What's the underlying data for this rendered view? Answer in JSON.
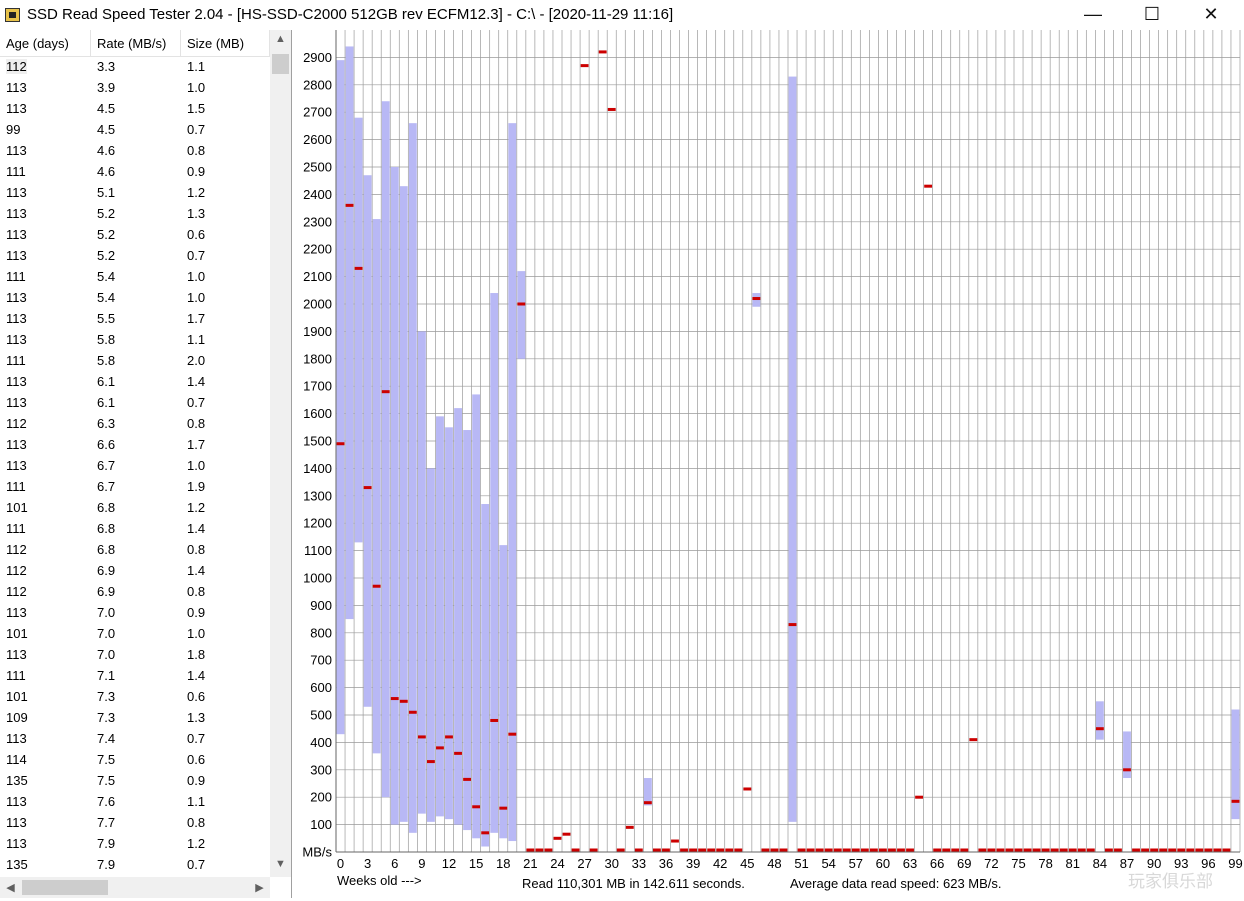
{
  "window": {
    "title": "SSD Read Speed Tester 2.04 - [HS-SSD-C2000 512GB rev ECFM12.3] - C:\\ - [2020-11-29 11:16]",
    "minimize_glyph": "—",
    "maximize_glyph": "☐",
    "close_glyph": "✕"
  },
  "table": {
    "columns": [
      "Age (days)",
      "Rate (MB/s)",
      "Size (MB)"
    ],
    "rows": [
      [
        "112",
        "3.3",
        "1.1"
      ],
      [
        "113",
        "3.9",
        "1.0"
      ],
      [
        "113",
        "4.5",
        "1.5"
      ],
      [
        "99",
        "4.5",
        "0.7"
      ],
      [
        "113",
        "4.6",
        "0.8"
      ],
      [
        "111",
        "4.6",
        "0.9"
      ],
      [
        "113",
        "5.1",
        "1.2"
      ],
      [
        "113",
        "5.2",
        "1.3"
      ],
      [
        "113",
        "5.2",
        "0.6"
      ],
      [
        "113",
        "5.2",
        "0.7"
      ],
      [
        "111",
        "5.4",
        "1.0"
      ],
      [
        "113",
        "5.4",
        "1.0"
      ],
      [
        "113",
        "5.5",
        "1.7"
      ],
      [
        "113",
        "5.8",
        "1.1"
      ],
      [
        "111",
        "5.8",
        "2.0"
      ],
      [
        "113",
        "6.1",
        "1.4"
      ],
      [
        "113",
        "6.1",
        "0.7"
      ],
      [
        "112",
        "6.3",
        "0.8"
      ],
      [
        "113",
        "6.6",
        "1.7"
      ],
      [
        "113",
        "6.7",
        "1.0"
      ],
      [
        "111",
        "6.7",
        "1.9"
      ],
      [
        "101",
        "6.8",
        "1.2"
      ],
      [
        "111",
        "6.8",
        "1.4"
      ],
      [
        "112",
        "6.8",
        "0.8"
      ],
      [
        "112",
        "6.9",
        "1.4"
      ],
      [
        "112",
        "6.9",
        "0.8"
      ],
      [
        "113",
        "7.0",
        "0.9"
      ],
      [
        "101",
        "7.0",
        "1.0"
      ],
      [
        "113",
        "7.0",
        "1.8"
      ],
      [
        "111",
        "7.1",
        "1.4"
      ],
      [
        "101",
        "7.3",
        "0.6"
      ],
      [
        "109",
        "7.3",
        "1.3"
      ],
      [
        "113",
        "7.4",
        "0.7"
      ],
      [
        "114",
        "7.5",
        "0.6"
      ],
      [
        "135",
        "7.5",
        "0.9"
      ],
      [
        "113",
        "7.6",
        "1.1"
      ],
      [
        "113",
        "7.7",
        "0.8"
      ],
      [
        "113",
        "7.9",
        "1.2"
      ],
      [
        "135",
        "7.9",
        "0.7"
      ]
    ]
  },
  "chart_data": {
    "type": "bar",
    "title": "",
    "xlabel": "Weeks old --->",
    "ylabel": "MB/s",
    "ylim": [
      0,
      3000
    ],
    "y_ticks": [
      100,
      200,
      300,
      400,
      500,
      600,
      700,
      800,
      900,
      1000,
      1100,
      1200,
      1300,
      1400,
      1500,
      1600,
      1700,
      1800,
      1900,
      2000,
      2100,
      2200,
      2300,
      2400,
      2500,
      2600,
      2700,
      2800,
      2900
    ],
    "x_ticks": [
      0,
      3,
      6,
      9,
      12,
      15,
      18,
      21,
      24,
      27,
      30,
      33,
      36,
      39,
      42,
      45,
      48,
      51,
      54,
      57,
      60,
      63,
      66,
      69,
      72,
      75,
      78,
      81,
      84,
      87,
      90,
      93,
      96,
      99
    ],
    "grid": true,
    "colors": {
      "range_bar": "#b8b8f5",
      "average_mark": "#cc0000",
      "grid": "#9a9a9a"
    },
    "series": [
      {
        "name": "",
        "description_hidden": true,
        "points": [
          {
            "week": 0,
            "min": 430,
            "max": 2890,
            "avg": 1490
          },
          {
            "week": 1,
            "min": 850,
            "max": 2940,
            "avg": 2360
          },
          {
            "week": 2,
            "min": 1130,
            "max": 2680,
            "avg": 2130
          },
          {
            "week": 3,
            "min": 530,
            "max": 2470,
            "avg": 1330
          },
          {
            "week": 4,
            "min": 360,
            "max": 2310,
            "avg": 970
          },
          {
            "week": 5,
            "min": 200,
            "max": 2740,
            "avg": 1680
          },
          {
            "week": 6,
            "min": 100,
            "max": 2500,
            "avg": 560
          },
          {
            "week": 7,
            "min": 110,
            "max": 2430,
            "avg": 550
          },
          {
            "week": 8,
            "min": 70,
            "max": 2660,
            "avg": 510
          },
          {
            "week": 9,
            "min": 140,
            "max": 1900,
            "avg": 420
          },
          {
            "week": 10,
            "min": 110,
            "max": 1400,
            "avg": 330
          },
          {
            "week": 11,
            "min": 130,
            "max": 1590,
            "avg": 380
          },
          {
            "week": 12,
            "min": 120,
            "max": 1550,
            "avg": 420
          },
          {
            "week": 13,
            "min": 100,
            "max": 1620,
            "avg": 360
          },
          {
            "week": 14,
            "min": 80,
            "max": 1540,
            "avg": 265
          },
          {
            "week": 15,
            "min": 50,
            "max": 1670,
            "avg": 165
          },
          {
            "week": 16,
            "min": 20,
            "max": 1270,
            "avg": 70
          },
          {
            "week": 17,
            "min": 70,
            "max": 2040,
            "avg": 480
          },
          {
            "week": 18,
            "min": 50,
            "max": 1120,
            "avg": 160
          },
          {
            "week": 19,
            "min": 40,
            "max": 2660,
            "avg": 430
          },
          {
            "week": 20,
            "min": 1800,
            "max": 2120,
            "avg": 2000
          },
          {
            "week": 21,
            "min": 0,
            "max": 0,
            "avg": 5
          },
          {
            "week": 22,
            "min": 0,
            "max": 0,
            "avg": 5
          },
          {
            "week": 23,
            "min": 0,
            "max": 0,
            "avg": 5
          },
          {
            "week": 24,
            "min": 0,
            "max": 0,
            "avg": 50
          },
          {
            "week": 25,
            "min": 0,
            "max": 0,
            "avg": 65
          },
          {
            "week": 26,
            "min": 0,
            "max": 0,
            "avg": 5
          },
          {
            "week": 27,
            "min": 0,
            "max": 0,
            "avg": 2870
          },
          {
            "week": 28,
            "min": 0,
            "max": 0,
            "avg": 5
          },
          {
            "week": 29,
            "min": 0,
            "max": 0,
            "avg": 2920
          },
          {
            "week": 30,
            "min": 0,
            "max": 0,
            "avg": 2710
          },
          {
            "week": 31,
            "min": 0,
            "max": 0,
            "avg": 5
          },
          {
            "week": 32,
            "min": 0,
            "max": 0,
            "avg": 90
          },
          {
            "week": 33,
            "min": 0,
            "max": 0,
            "avg": 5
          },
          {
            "week": 34,
            "min": 170,
            "max": 270,
            "avg": 180
          },
          {
            "week": 35,
            "min": 0,
            "max": 0,
            "avg": 5
          },
          {
            "week": 36,
            "min": 0,
            "max": 0,
            "avg": 5
          },
          {
            "week": 37,
            "min": 0,
            "max": 0,
            "avg": 40
          },
          {
            "week": 38,
            "min": 0,
            "max": 0,
            "avg": 5
          },
          {
            "week": 39,
            "min": 0,
            "max": 0,
            "avg": 5
          },
          {
            "week": 40,
            "min": 0,
            "max": 0,
            "avg": 5
          },
          {
            "week": 41,
            "min": 0,
            "max": 0,
            "avg": 5
          },
          {
            "week": 42,
            "min": 0,
            "max": 0,
            "avg": 5
          },
          {
            "week": 43,
            "min": 0,
            "max": 0,
            "avg": 5
          },
          {
            "week": 44,
            "min": 0,
            "max": 0,
            "avg": 5
          },
          {
            "week": 45,
            "min": 0,
            "max": 0,
            "avg": 230
          },
          {
            "week": 46,
            "min": 1990,
            "max": 2040,
            "avg": 2020
          },
          {
            "week": 47,
            "min": 0,
            "max": 0,
            "avg": 5
          },
          {
            "week": 48,
            "min": 0,
            "max": 0,
            "avg": 5
          },
          {
            "week": 49,
            "min": 0,
            "max": 0,
            "avg": 5
          },
          {
            "week": 50,
            "min": 110,
            "max": 2830,
            "avg": 830
          },
          {
            "week": 51,
            "min": 0,
            "max": 0,
            "avg": 5
          },
          {
            "week": 52,
            "min": 0,
            "max": 0,
            "avg": 5
          },
          {
            "week": 53,
            "min": 0,
            "max": 0,
            "avg": 5
          },
          {
            "week": 54,
            "min": 0,
            "max": 0,
            "avg": 5
          },
          {
            "week": 55,
            "min": 0,
            "max": 0,
            "avg": 5
          },
          {
            "week": 56,
            "min": 0,
            "max": 0,
            "avg": 5
          },
          {
            "week": 57,
            "min": 0,
            "max": 0,
            "avg": 5
          },
          {
            "week": 58,
            "min": 0,
            "max": 0,
            "avg": 5
          },
          {
            "week": 59,
            "min": 0,
            "max": 0,
            "avg": 5
          },
          {
            "week": 60,
            "min": 0,
            "max": 0,
            "avg": 5
          },
          {
            "week": 61,
            "min": 0,
            "max": 0,
            "avg": 5
          },
          {
            "week": 62,
            "min": 0,
            "max": 0,
            "avg": 5
          },
          {
            "week": 63,
            "min": 0,
            "max": 0,
            "avg": 5
          },
          {
            "week": 64,
            "min": 0,
            "max": 0,
            "avg": 200
          },
          {
            "week": 65,
            "min": 0,
            "max": 0,
            "avg": 2430
          },
          {
            "week": 66,
            "min": 0,
            "max": 0,
            "avg": 5
          },
          {
            "week": 67,
            "min": 0,
            "max": 0,
            "avg": 5
          },
          {
            "week": 68,
            "min": 0,
            "max": 0,
            "avg": 5
          },
          {
            "week": 69,
            "min": 0,
            "max": 0,
            "avg": 5
          },
          {
            "week": 70,
            "min": 0,
            "max": 0,
            "avg": 410
          },
          {
            "week": 71,
            "min": 0,
            "max": 0,
            "avg": 5
          },
          {
            "week": 72,
            "min": 0,
            "max": 0,
            "avg": 5
          },
          {
            "week": 73,
            "min": 0,
            "max": 0,
            "avg": 5
          },
          {
            "week": 74,
            "min": 0,
            "max": 0,
            "avg": 5
          },
          {
            "week": 75,
            "min": 0,
            "max": 0,
            "avg": 5
          },
          {
            "week": 76,
            "min": 0,
            "max": 0,
            "avg": 5
          },
          {
            "week": 77,
            "min": 0,
            "max": 0,
            "avg": 5
          },
          {
            "week": 78,
            "min": 0,
            "max": 0,
            "avg": 5
          },
          {
            "week": 79,
            "min": 0,
            "max": 0,
            "avg": 5
          },
          {
            "week": 80,
            "min": 0,
            "max": 0,
            "avg": 5
          },
          {
            "week": 81,
            "min": 0,
            "max": 0,
            "avg": 5
          },
          {
            "week": 82,
            "min": 0,
            "max": 0,
            "avg": 5
          },
          {
            "week": 83,
            "min": 0,
            "max": 0,
            "avg": 5
          },
          {
            "week": 84,
            "min": 410,
            "max": 550,
            "avg": 450
          },
          {
            "week": 85,
            "min": 0,
            "max": 0,
            "avg": 5
          },
          {
            "week": 86,
            "min": 0,
            "max": 0,
            "avg": 5
          },
          {
            "week": 87,
            "min": 270,
            "max": 440,
            "avg": 300
          },
          {
            "week": 88,
            "min": 0,
            "max": 0,
            "avg": 5
          },
          {
            "week": 89,
            "min": 0,
            "max": 0,
            "avg": 5
          },
          {
            "week": 90,
            "min": 0,
            "max": 0,
            "avg": 5
          },
          {
            "week": 91,
            "min": 0,
            "max": 0,
            "avg": 5
          },
          {
            "week": 92,
            "min": 0,
            "max": 0,
            "avg": 5
          },
          {
            "week": 93,
            "min": 0,
            "max": 0,
            "avg": 5
          },
          {
            "week": 94,
            "min": 0,
            "max": 0,
            "avg": 5
          },
          {
            "week": 95,
            "min": 0,
            "max": 0,
            "avg": 5
          },
          {
            "week": 96,
            "min": 0,
            "max": 0,
            "avg": 5
          },
          {
            "week": 97,
            "min": 0,
            "max": 0,
            "avg": 5
          },
          {
            "week": 98,
            "min": 0,
            "max": 0,
            "avg": 5
          },
          {
            "week": 99,
            "min": 120,
            "max": 520,
            "avg": 185
          }
        ]
      }
    ]
  },
  "status": {
    "read_summary": "Read 110,301 MB in 142.611 seconds.",
    "average_speed": "Average data read speed: 623 MB/s."
  },
  "watermark": "玩家俱乐部"
}
